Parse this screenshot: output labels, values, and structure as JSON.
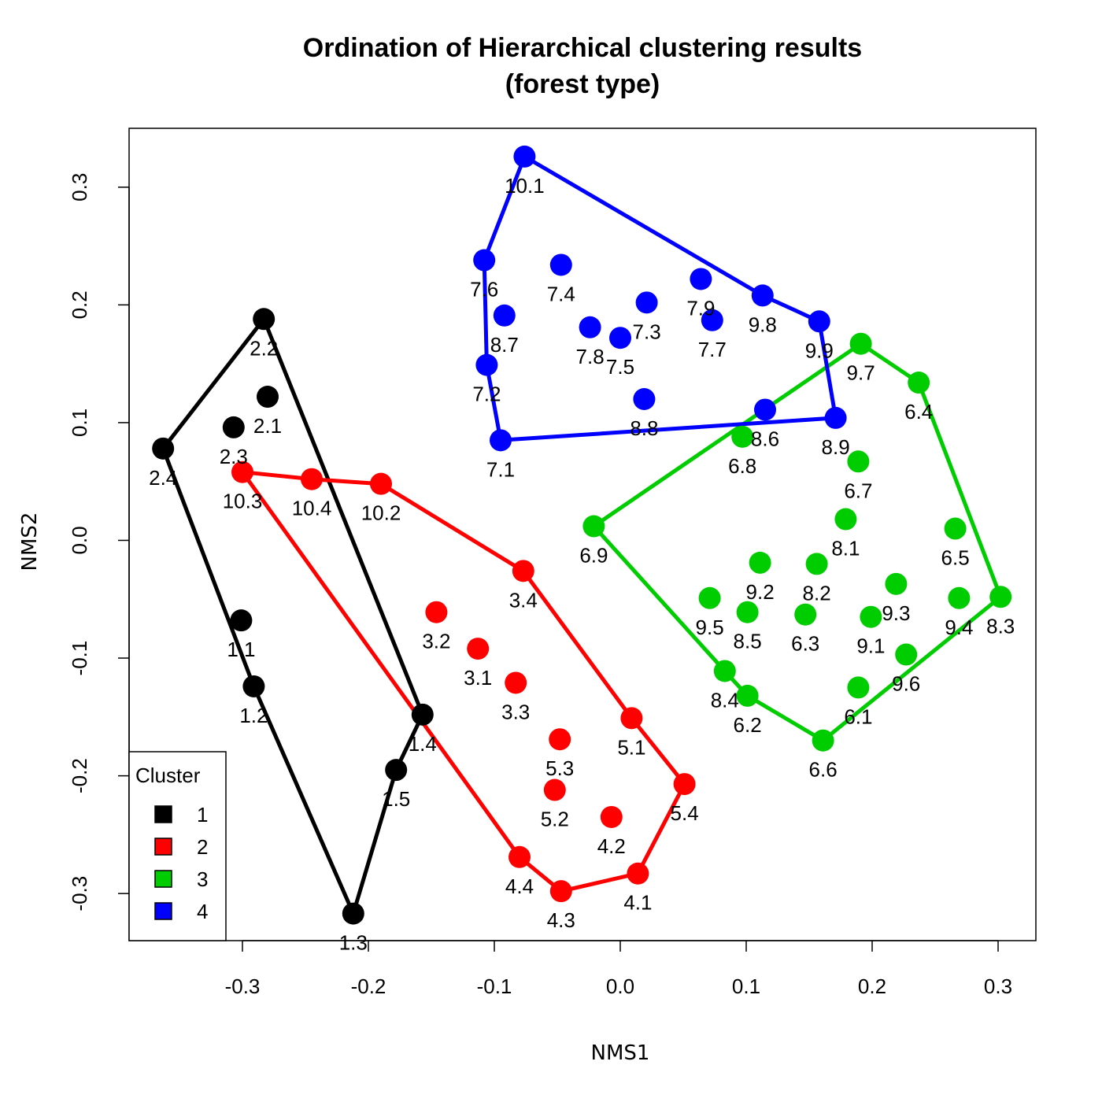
{
  "chart_data": {
    "type": "scatter",
    "title": [
      "Ordination of Hierarchical clustering results",
      "(forest type)"
    ],
    "xlabel": "NMS1",
    "ylabel": "NMS2",
    "xlim": [
      -0.39,
      0.33
    ],
    "ylim": [
      -0.34,
      0.35
    ],
    "xticks": [
      -0.3,
      -0.2,
      -0.1,
      0.0,
      0.1,
      0.2,
      0.3
    ],
    "xtick_labels": [
      "-0.3",
      "-0.2",
      "-0.1",
      "0.0",
      "0.1",
      "0.2",
      "0.3"
    ],
    "yticks": [
      -0.3,
      -0.2,
      -0.1,
      0.0,
      0.1,
      0.2,
      0.3
    ],
    "ytick_labels": [
      "-0.3",
      "-0.2",
      "-0.1",
      "0.0",
      "0.1",
      "0.2",
      "0.3"
    ],
    "grid": false,
    "legend": {
      "title": "Cluster",
      "placement": "bottom-left",
      "entries": [
        "1",
        "2",
        "3",
        "4"
      ]
    },
    "series": [
      {
        "name": "1",
        "color": "#000000",
        "points": [
          {
            "label": "1.1",
            "x": -0.301,
            "y": -0.068
          },
          {
            "label": "1.2",
            "x": -0.291,
            "y": -0.124
          },
          {
            "label": "1.3",
            "x": -0.212,
            "y": -0.317
          },
          {
            "label": "1.4",
            "x": -0.157,
            "y": -0.148
          },
          {
            "label": "1.5",
            "x": -0.178,
            "y": -0.195
          },
          {
            "label": "2.1",
            "x": -0.28,
            "y": 0.122
          },
          {
            "label": "2.2",
            "x": -0.283,
            "y": 0.188
          },
          {
            "label": "2.3",
            "x": -0.307,
            "y": 0.096
          },
          {
            "label": "2.4",
            "x": -0.363,
            "y": 0.078
          }
        ],
        "hull": [
          "2.2",
          "2.4",
          "1.2",
          "1.3",
          "1.5",
          "1.4"
        ]
      },
      {
        "name": "2",
        "color": "#ff0000",
        "points": [
          {
            "label": "3.1",
            "x": -0.113,
            "y": -0.092
          },
          {
            "label": "3.2",
            "x": -0.146,
            "y": -0.061
          },
          {
            "label": "3.3",
            "x": -0.083,
            "y": -0.121
          },
          {
            "label": "3.4",
            "x": -0.077,
            "y": -0.026
          },
          {
            "label": "4.1",
            "x": 0.014,
            "y": -0.283
          },
          {
            "label": "4.2",
            "x": -0.007,
            "y": -0.235
          },
          {
            "label": "4.3",
            "x": -0.047,
            "y": -0.298
          },
          {
            "label": "4.4",
            "x": -0.08,
            "y": -0.269
          },
          {
            "label": "5.1",
            "x": 0.009,
            "y": -0.151
          },
          {
            "label": "5.2",
            "x": -0.052,
            "y": -0.212
          },
          {
            "label": "5.3",
            "x": -0.048,
            "y": -0.169
          },
          {
            "label": "5.4",
            "x": 0.051,
            "y": -0.207
          },
          {
            "label": "10.2",
            "x": -0.19,
            "y": 0.048
          },
          {
            "label": "10.3",
            "x": -0.3,
            "y": 0.058
          },
          {
            "label": "10.4",
            "x": -0.245,
            "y": 0.052
          }
        ],
        "hull": [
          "10.3",
          "10.4",
          "10.2",
          "3.4",
          "5.1",
          "5.4",
          "4.1",
          "4.3",
          "4.4"
        ]
      },
      {
        "name": "3",
        "color": "#00cd00",
        "points": [
          {
            "label": "6.1",
            "x": 0.189,
            "y": -0.125
          },
          {
            "label": "6.2",
            "x": 0.101,
            "y": -0.132
          },
          {
            "label": "6.3",
            "x": 0.147,
            "y": -0.063
          },
          {
            "label": "6.4",
            "x": 0.237,
            "y": 0.134
          },
          {
            "label": "6.5",
            "x": 0.266,
            "y": 0.01
          },
          {
            "label": "6.6",
            "x": 0.161,
            "y": -0.17
          },
          {
            "label": "6.7",
            "x": 0.189,
            "y": 0.067
          },
          {
            "label": "6.8",
            "x": 0.097,
            "y": 0.088
          },
          {
            "label": "6.9",
            "x": -0.021,
            "y": 0.012
          },
          {
            "label": "8.1",
            "x": 0.179,
            "y": 0.018
          },
          {
            "label": "8.2",
            "x": 0.156,
            "y": -0.02
          },
          {
            "label": "8.3",
            "x": 0.302,
            "y": -0.048
          },
          {
            "label": "8.4",
            "x": 0.083,
            "y": -0.111
          },
          {
            "label": "8.5",
            "x": 0.101,
            "y": -0.061
          },
          {
            "label": "9.1",
            "x": 0.199,
            "y": -0.065
          },
          {
            "label": "9.2",
            "x": 0.111,
            "y": -0.019
          },
          {
            "label": "9.3",
            "x": 0.219,
            "y": -0.037
          },
          {
            "label": "9.4",
            "x": 0.269,
            "y": -0.049
          },
          {
            "label": "9.5",
            "x": 0.071,
            "y": -0.049
          },
          {
            "label": "9.6",
            "x": 0.227,
            "y": -0.097
          },
          {
            "label": "9.7",
            "x": 0.191,
            "y": 0.167
          }
        ],
        "hull": [
          "9.7",
          "6.4",
          "8.3",
          "6.6",
          "6.2",
          "8.4",
          "6.9"
        ]
      },
      {
        "name": "4",
        "color": "#0000ff",
        "points": [
          {
            "label": "7.1",
            "x": -0.095,
            "y": 0.085
          },
          {
            "label": "7.2",
            "x": -0.106,
            "y": 0.149
          },
          {
            "label": "7.3",
            "x": 0.021,
            "y": 0.202
          },
          {
            "label": "7.4",
            "x": -0.047,
            "y": 0.234
          },
          {
            "label": "7.5",
            "x": 0.0,
            "y": 0.172
          },
          {
            "label": "7.6",
            "x": -0.108,
            "y": 0.238
          },
          {
            "label": "7.7",
            "x": 0.073,
            "y": 0.187
          },
          {
            "label": "7.8",
            "x": -0.024,
            "y": 0.181
          },
          {
            "label": "7.9",
            "x": 0.064,
            "y": 0.222
          },
          {
            "label": "8.6",
            "x": 0.115,
            "y": 0.111
          },
          {
            "label": "8.7",
            "x": -0.092,
            "y": 0.191
          },
          {
            "label": "8.8",
            "x": 0.019,
            "y": 0.12
          },
          {
            "label": "8.9",
            "x": 0.171,
            "y": 0.104
          },
          {
            "label": "9.8",
            "x": 0.113,
            "y": 0.208
          },
          {
            "label": "9.9",
            "x": 0.158,
            "y": 0.186
          },
          {
            "label": "10.1",
            "x": -0.076,
            "y": 0.326
          }
        ],
        "hull": [
          "10.1",
          "9.8",
          "9.9",
          "8.9",
          "7.1",
          "7.2",
          "7.6"
        ]
      }
    ]
  }
}
